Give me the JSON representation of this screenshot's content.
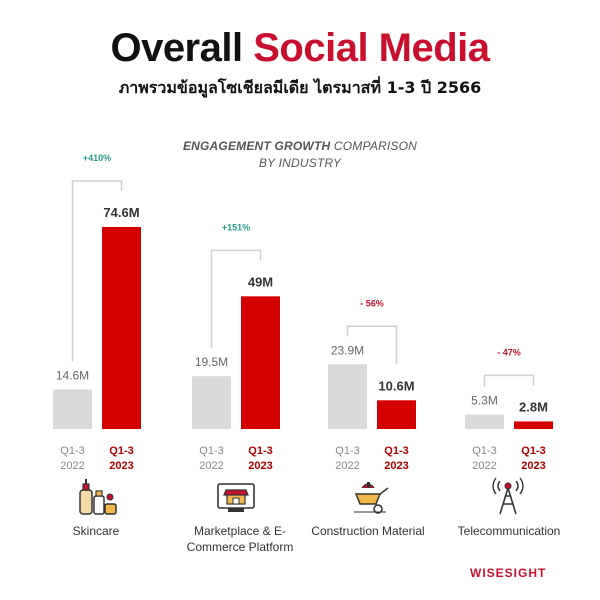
{
  "header": {
    "title_part1": "Overall",
    "title_part2": "Social Media",
    "subtitle": "ภาพรวมข้อมูลโซเชียลมีเดีย ไตรมาสที่ 1-3 ปี 2566"
  },
  "chart_heading": {
    "bold": "ENGAGEMENT GROWTH",
    "rest_line1": "COMPARISON",
    "line2": "BY INDUSTRY"
  },
  "brand": "WISESIGHT",
  "colors": {
    "accent": "#c8102e",
    "bar_2022": "#d9d9d9",
    "bar_2023": "#d40000",
    "growth_positive": "#2a9d8f",
    "growth_negative": "#c8102e",
    "bracket": "#cfcfcf"
  },
  "chart_data": {
    "type": "bar",
    "title": "ENGAGEMENT GROWTH COMPARISON BY INDUSTRY",
    "series": [
      {
        "name": "Q1-3 2022",
        "values": [
          14.6,
          19.5,
          23.9,
          5.3
        ]
      },
      {
        "name": "Q1-3 2023",
        "values": [
          74.6,
          49,
          10.6,
          2.8
        ]
      }
    ],
    "categories": [
      "Skincare",
      "Marketplace & E-Commerce Platform",
      "Construction Material",
      "Telecommunication"
    ],
    "value_labels_2022": [
      "14.6M",
      "19.5M",
      "23.9M",
      "5.3M"
    ],
    "value_labels_2023": [
      "74.6M",
      "49M",
      "10.6M",
      "2.8M"
    ],
    "growth_labels": [
      "+410%",
      "+151%",
      "- 56%",
      "- 47%"
    ],
    "period_2022": [
      "Q1-3",
      "2022"
    ],
    "period_2023": [
      "Q1-3",
      "2023"
    ],
    "label_lines": [
      [
        "Skincare"
      ],
      [
        "Marketplace & E-",
        "Commerce Platform"
      ],
      [
        "Construction Material"
      ],
      [
        "Telecommunication"
      ]
    ],
    "icons": [
      "skincare-bottles-icon",
      "marketplace-storefront-icon",
      "construction-wheelbarrow-icon",
      "telecom-tower-icon"
    ],
    "unit": "M"
  }
}
